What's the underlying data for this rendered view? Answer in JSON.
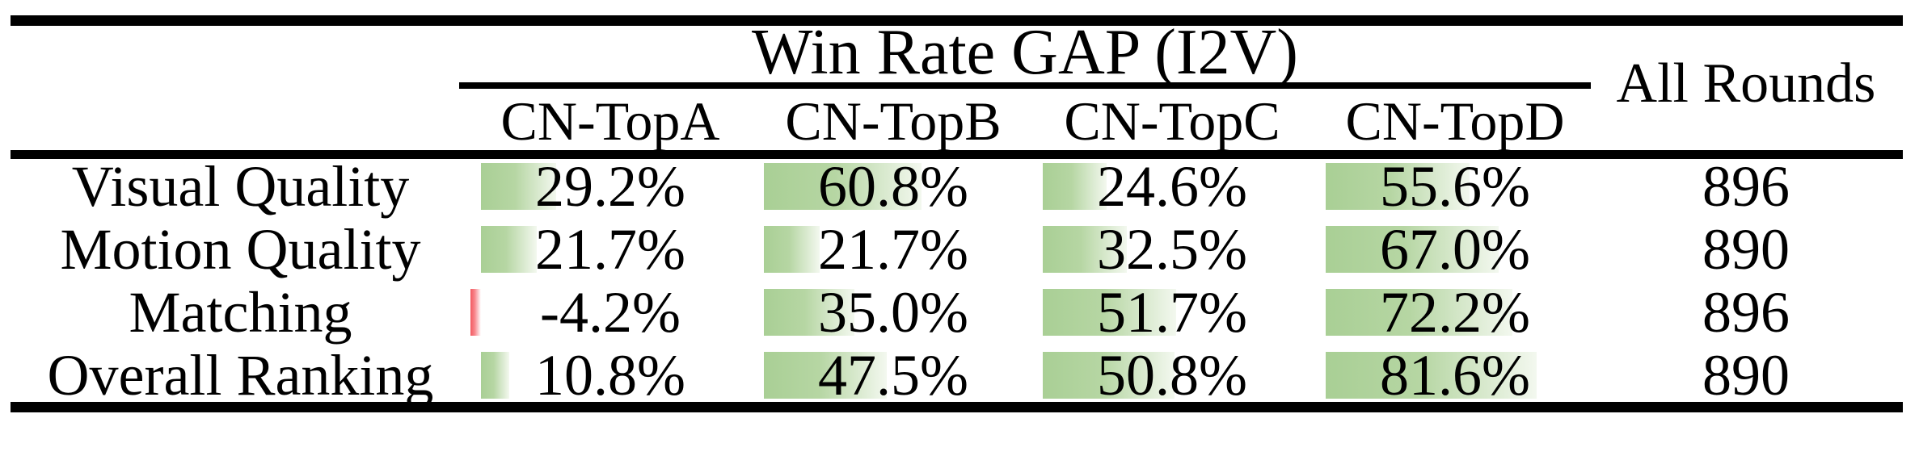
{
  "table": {
    "title": "Win Rate GAP (I2V)",
    "rounds_header": "All Rounds",
    "columns": [
      "CN-TopA",
      "CN-TopB",
      "CN-TopC",
      "CN-TopD"
    ],
    "rows": [
      {
        "label": "Visual Quality",
        "cells": [
          {
            "text": "29.2%",
            "pct": 29.2
          },
          {
            "text": "60.8%",
            "pct": 60.8
          },
          {
            "text": "24.6%",
            "pct": 24.6
          },
          {
            "text": "55.6%",
            "pct": 55.6
          }
        ],
        "rounds": "896"
      },
      {
        "label": "Motion Quality",
        "cells": [
          {
            "text": "21.7%",
            "pct": 21.7
          },
          {
            "text": "21.7%",
            "pct": 21.7
          },
          {
            "text": "32.5%",
            "pct": 32.5
          },
          {
            "text": "67.0%",
            "pct": 67.0
          }
        ],
        "rounds": "890"
      },
      {
        "label": "Matching",
        "cells": [
          {
            "text": "-4.2%",
            "pct": -4.2
          },
          {
            "text": "35.0%",
            "pct": 35.0
          },
          {
            "text": "51.7%",
            "pct": 51.7
          },
          {
            "text": "72.2%",
            "pct": 72.2
          }
        ],
        "rounds": "896"
      },
      {
        "label": "Overall Ranking",
        "cells": [
          {
            "text": "10.8%",
            "pct": 10.8
          },
          {
            "text": "47.5%",
            "pct": 47.5
          },
          {
            "text": "50.8%",
            "pct": 50.8
          },
          {
            "text": "81.6%",
            "pct": 81.6
          }
        ],
        "rounds": "890"
      }
    ],
    "colors": {
      "bar_positive": "#a9cf95",
      "bar_positive_fade": "#f3f8ef",
      "bar_negative": "#f25b62",
      "rule": "#000000",
      "text": "#000000",
      "background": "#ffffff"
    }
  },
  "chart_data": {
    "type": "table",
    "title": "Win Rate GAP (I2V)",
    "columns": [
      "CN-TopA",
      "CN-TopB",
      "CN-TopC",
      "CN-TopD",
      "All Rounds"
    ],
    "rows": [
      {
        "label": "Visual Quality",
        "win_rate_gap_pct": [
          29.2,
          60.8,
          24.6,
          55.6
        ],
        "all_rounds": 896
      },
      {
        "label": "Motion Quality",
        "win_rate_gap_pct": [
          21.7,
          21.7,
          32.5,
          67.0
        ],
        "all_rounds": 890
      },
      {
        "label": "Matching",
        "win_rate_gap_pct": [
          -4.2,
          35.0,
          51.7,
          72.2
        ],
        "all_rounds": 896
      },
      {
        "label": "Overall Ranking",
        "win_rate_gap_pct": [
          10.8,
          47.5,
          50.8,
          81.6
        ],
        "all_rounds": 890
      }
    ],
    "notes": "In-cell data bars proportional to percentage; green gradient for positive values, red for negative"
  }
}
